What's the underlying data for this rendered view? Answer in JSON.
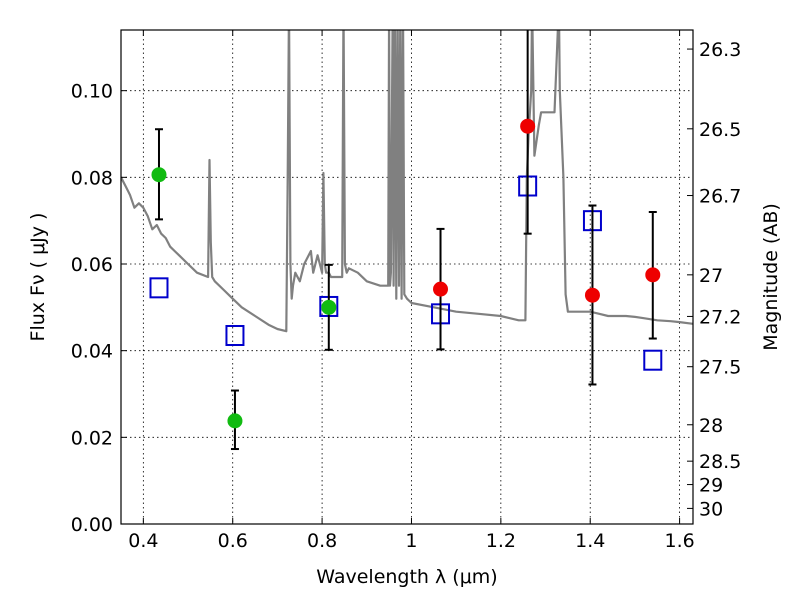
{
  "chart_data": {
    "type": "scatter",
    "xlabel": "Wavelength  λ (μm)",
    "ylabel": "Flux  Fν  ( μJy )",
    "y2label": "Magnitude (AB)",
    "xlim": [
      0.35,
      1.63
    ],
    "ylim": [
      0.0,
      0.114
    ],
    "grid": true,
    "x_ticks": [
      0.4,
      0.6,
      0.8,
      1.0,
      1.2,
      1.4,
      1.6
    ],
    "x_tick_labels": [
      "0.4",
      "0.6",
      "0.8",
      "1",
      "1.2",
      "1.4",
      "1.6"
    ],
    "y_ticks": [
      0.0,
      0.02,
      0.04,
      0.06,
      0.08,
      0.1
    ],
    "y_tick_labels": [
      "0.00",
      "0.02",
      "0.04",
      "0.06",
      "0.08",
      "0.10"
    ],
    "y2_ticks": [
      {
        "label": "26.3",
        "flux": 0.1096
      },
      {
        "label": "26.5",
        "flux": 0.0912
      },
      {
        "label": "26.7",
        "flux": 0.0758
      },
      {
        "label": "27",
        "flux": 0.0575
      },
      {
        "label": "27.2",
        "flux": 0.0479
      },
      {
        "label": "27.5",
        "flux": 0.0363
      },
      {
        "label": "28",
        "flux": 0.0229
      },
      {
        "label": "28.5",
        "flux": 0.0145
      },
      {
        "label": "29",
        "flux": 0.0091
      },
      {
        "label": "30",
        "flux": 0.0036
      }
    ],
    "series": [
      {
        "marker": "circle",
        "color": "#11bb11",
        "x": [
          0.435,
          0.605,
          0.815
        ],
        "y": [
          0.0806,
          0.0238,
          0.05
        ],
        "yerr_low": [
          0.0703,
          0.0173,
          0.0402
        ],
        "yerr_high": [
          0.0911,
          0.0308,
          0.0598
        ]
      },
      {
        "marker": "circle",
        "color": "#ee0000",
        "x": [
          1.065,
          1.26,
          1.405,
          1.54
        ],
        "y": [
          0.0542,
          0.0918,
          0.0528,
          0.0575
        ],
        "yerr_low": [
          0.0403,
          0.067,
          0.0322,
          0.0428
        ],
        "yerr_high": [
          0.0681,
          0.116,
          0.0735,
          0.072
        ]
      },
      {
        "marker": "open-square",
        "color": "#0000cc",
        "x": [
          0.435,
          0.605,
          0.815,
          1.065,
          1.26,
          1.405,
          1.54
        ],
        "y": [
          0.0545,
          0.0435,
          0.0502,
          0.0485,
          0.078,
          0.07,
          0.0378
        ]
      },
      {
        "marker": "line",
        "color": "#808080",
        "x": [
          0.35,
          0.36,
          0.37,
          0.38,
          0.39,
          0.4,
          0.41,
          0.42,
          0.43,
          0.44,
          0.45,
          0.46,
          0.47,
          0.48,
          0.5,
          0.52,
          0.545,
          0.548,
          0.551,
          0.554,
          0.56,
          0.58,
          0.6,
          0.62,
          0.65,
          0.68,
          0.7,
          0.72,
          0.723,
          0.726,
          0.729,
          0.732,
          0.735,
          0.74,
          0.75,
          0.76,
          0.77,
          0.775,
          0.78,
          0.79,
          0.8,
          0.803,
          0.806,
          0.809,
          0.815,
          0.82,
          0.83,
          0.84,
          0.845,
          0.848,
          0.851,
          0.855,
          0.86,
          0.88,
          0.9,
          0.93,
          0.948,
          0.95,
          0.952,
          0.954,
          0.958,
          0.96,
          0.963,
          0.966,
          0.969,
          0.972,
          0.975,
          0.978,
          0.981,
          0.984,
          0.99,
          1.0,
          1.05,
          1.1,
          1.15,
          1.2,
          1.24,
          1.255,
          1.258,
          1.262,
          1.268,
          1.27,
          1.275,
          1.285,
          1.29,
          1.3,
          1.32,
          1.33,
          1.332,
          1.34,
          1.345,
          1.35,
          1.38,
          1.4,
          1.42,
          1.44,
          1.46,
          1.48,
          1.5,
          1.52,
          1.55,
          1.58,
          1.6,
          1.63
        ],
        "y": [
          0.08,
          0.078,
          0.076,
          0.073,
          0.074,
          0.073,
          0.071,
          0.068,
          0.069,
          0.067,
          0.066,
          0.064,
          0.063,
          0.062,
          0.06,
          0.058,
          0.057,
          0.084,
          0.065,
          0.057,
          0.056,
          0.054,
          0.052,
          0.05,
          0.048,
          0.046,
          0.045,
          0.0445,
          0.08,
          0.12,
          0.06,
          0.052,
          0.055,
          0.058,
          0.056,
          0.06,
          0.062,
          0.063,
          0.058,
          0.062,
          0.058,
          0.081,
          0.06,
          0.058,
          0.058,
          0.057,
          0.057,
          0.057,
          0.057,
          0.12,
          0.06,
          0.058,
          0.059,
          0.058,
          0.056,
          0.055,
          0.055,
          0.12,
          0.055,
          0.058,
          0.12,
          0.055,
          0.12,
          0.052,
          0.12,
          0.055,
          0.12,
          0.052,
          0.12,
          0.053,
          0.052,
          0.051,
          0.05,
          0.049,
          0.0485,
          0.048,
          0.047,
          0.047,
          0.08,
          0.09,
          0.1,
          0.12,
          0.085,
          0.092,
          0.095,
          0.095,
          0.095,
          0.12,
          0.1,
          0.08,
          0.053,
          0.049,
          0.049,
          0.049,
          0.0485,
          0.048,
          0.048,
          0.048,
          0.0478,
          0.0475,
          0.047,
          0.0468,
          0.0466,
          0.0462
        ]
      }
    ]
  }
}
